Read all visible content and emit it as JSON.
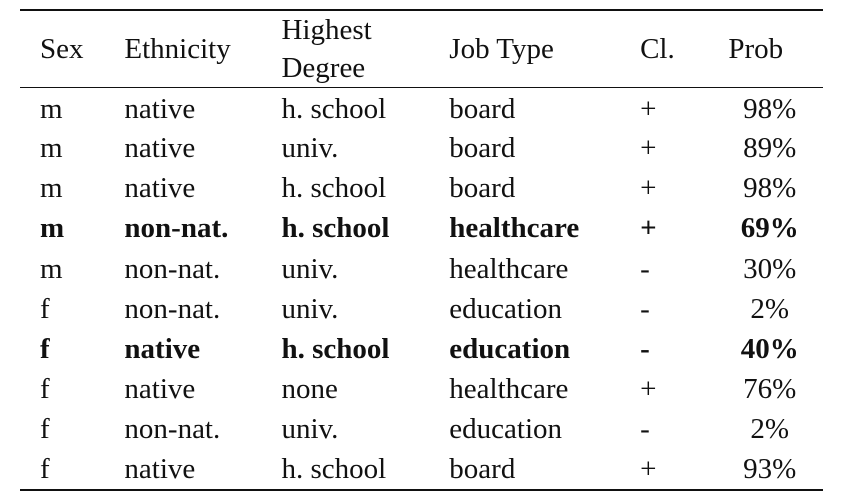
{
  "table": {
    "headers": [
      "Sex",
      "Ethnicity",
      "Highest Degree",
      "Job Type",
      "Cl.",
      "Prob"
    ],
    "header_degree_line1": "Highest",
    "header_degree_line2": "Degree",
    "rows": [
      {
        "sex": "m",
        "ethnicity": "native",
        "degree": "h. school",
        "job": "board",
        "cl": "+",
        "prob": "98%",
        "bold": false
      },
      {
        "sex": "m",
        "ethnicity": "native",
        "degree": "univ.",
        "job": "board",
        "cl": "+",
        "prob": "89%",
        "bold": false
      },
      {
        "sex": "m",
        "ethnicity": "native",
        "degree": "h. school",
        "job": "board",
        "cl": "+",
        "prob": "98%",
        "bold": false
      },
      {
        "sex": "m",
        "ethnicity": "non-nat.",
        "degree": "h. school",
        "job": "healthcare",
        "cl": "+",
        "prob": "69%",
        "bold": true
      },
      {
        "sex": "m",
        "ethnicity": "non-nat.",
        "degree": "univ.",
        "job": "healthcare",
        "cl": "-",
        "prob": "30%",
        "bold": false
      },
      {
        "sex": "f",
        "ethnicity": "non-nat.",
        "degree": "univ.",
        "job": "education",
        "cl": "-",
        "prob": "2%",
        "bold": false
      },
      {
        "sex": "f",
        "ethnicity": "native",
        "degree": "h. school",
        "job": "education",
        "cl": "-",
        "prob": "40%",
        "bold": true
      },
      {
        "sex": "f",
        "ethnicity": "native",
        "degree": "none",
        "job": "healthcare",
        "cl": "+",
        "prob": "76%",
        "bold": false
      },
      {
        "sex": "f",
        "ethnicity": "non-nat.",
        "degree": "univ.",
        "job": "education",
        "cl": "-",
        "prob": "2%",
        "bold": false
      },
      {
        "sex": "f",
        "ethnicity": "native",
        "degree": "h. school",
        "job": "board",
        "cl": "+",
        "prob": "93%",
        "bold": false
      }
    ]
  }
}
